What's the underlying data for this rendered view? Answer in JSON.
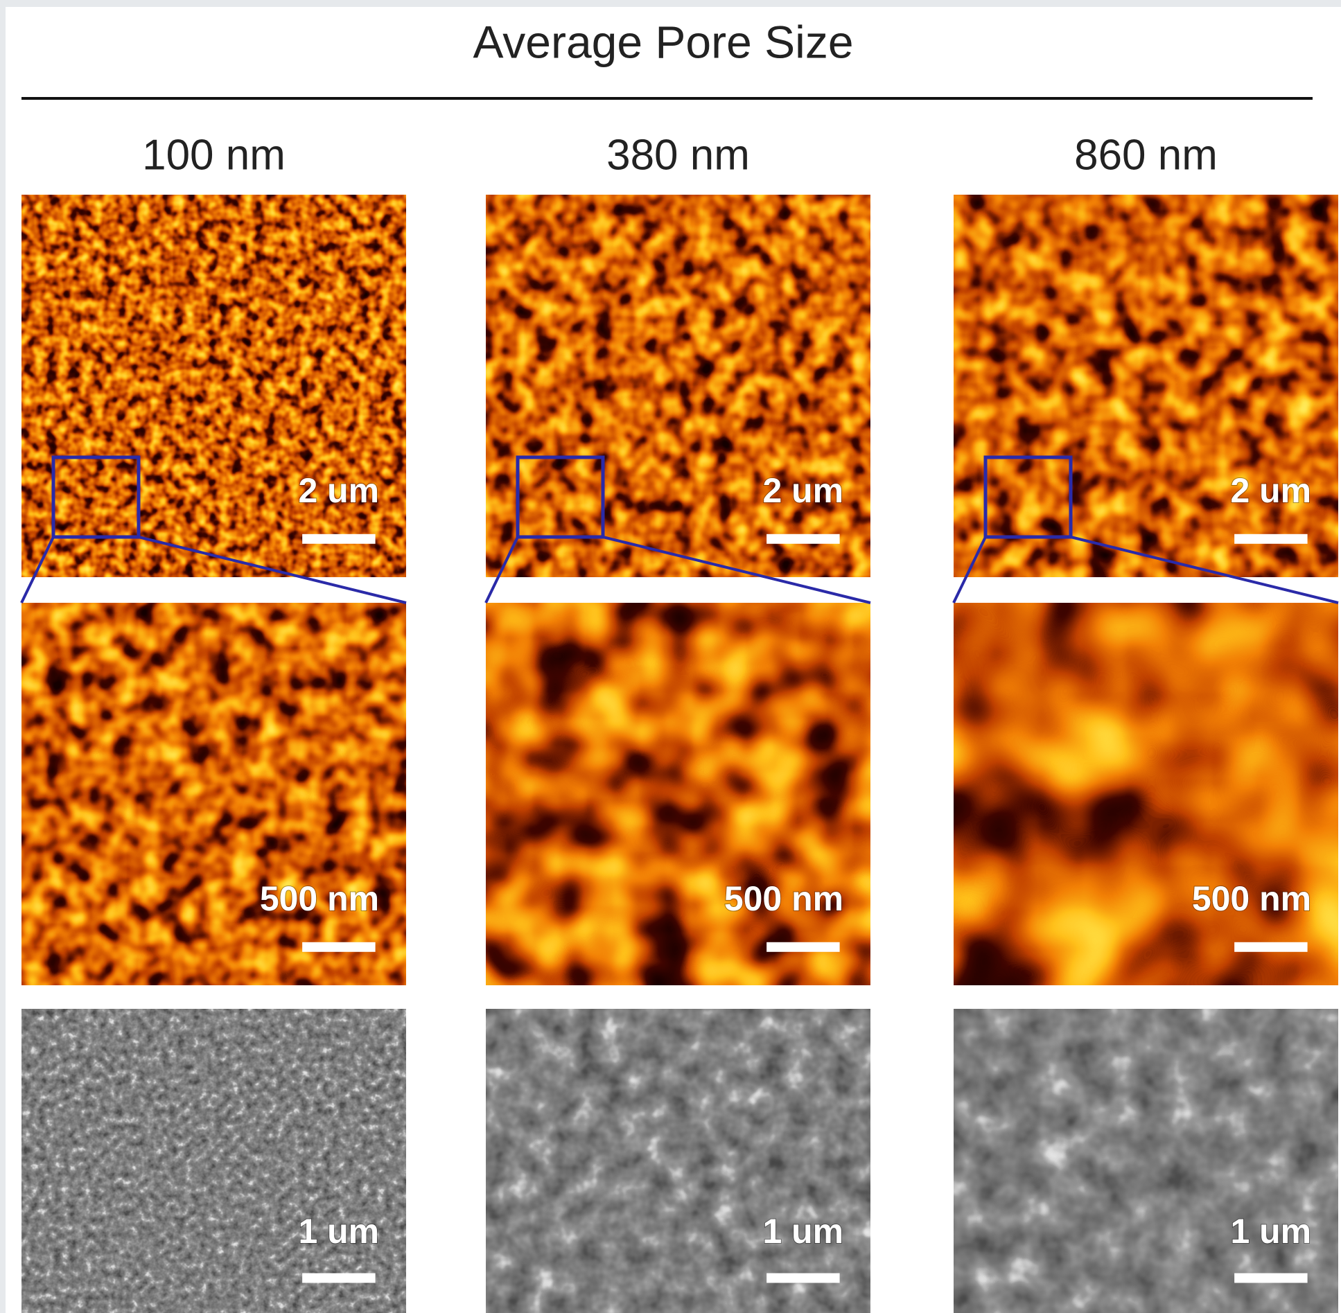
{
  "header": {
    "title": "Average Pore Size"
  },
  "columns": [
    {
      "label": "100 nm",
      "scale_bars": [
        "2 um",
        "500 nm",
        "1 um"
      ]
    },
    {
      "label": "380 nm",
      "scale_bars": [
        "2 um",
        "500 nm",
        "1 um"
      ]
    },
    {
      "label": "860 nm",
      "scale_bars": [
        "2 um",
        "500 nm",
        "1 um"
      ]
    }
  ]
}
